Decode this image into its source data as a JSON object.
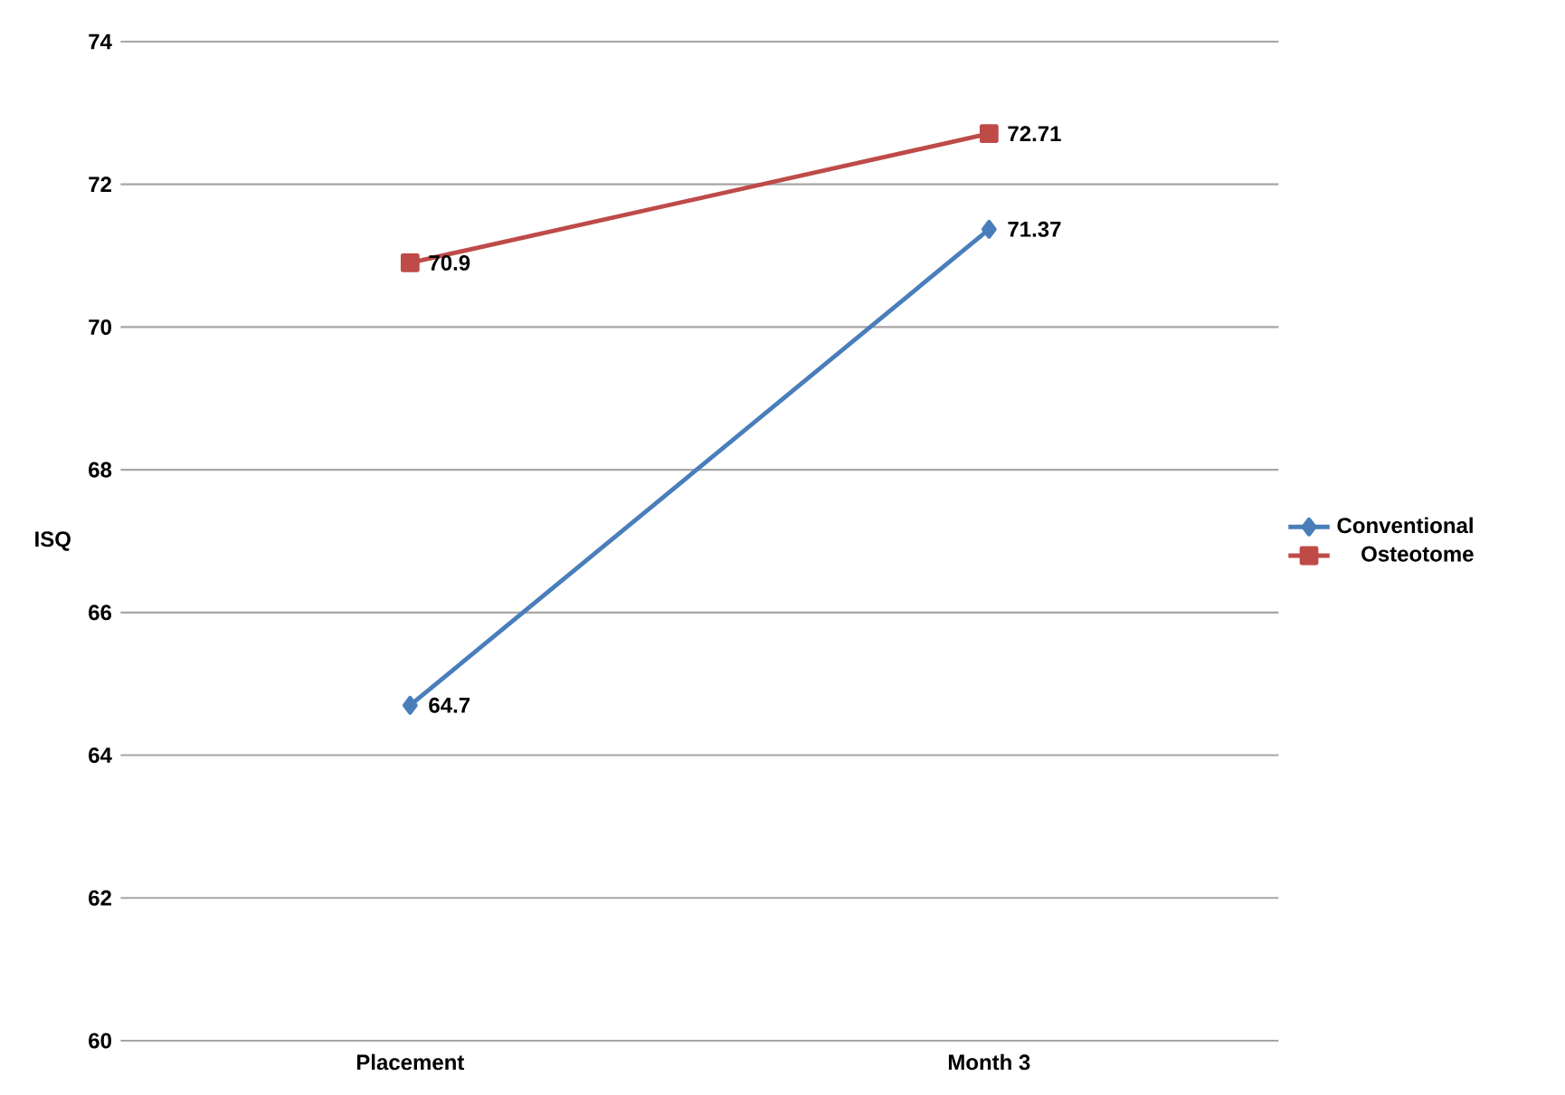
{
  "chart_data": {
    "type": "line",
    "ylabel": "ISQ",
    "categories": [
      "Placement",
      "Month 3"
    ],
    "series": [
      {
        "name": "Conventional",
        "color": "#4a7ebb",
        "values": [
          64.7,
          71.37
        ],
        "marker": "diamond"
      },
      {
        "name": "Osteotome",
        "color": "#be4b48",
        "values": [
          70.9,
          72.71
        ],
        "marker": "square"
      }
    ],
    "ylim": [
      60,
      74
    ],
    "yticks": [
      60,
      62,
      64,
      66,
      68,
      70,
      72,
      74
    ],
    "grid": "y",
    "legend": "right",
    "data_labels": true
  }
}
